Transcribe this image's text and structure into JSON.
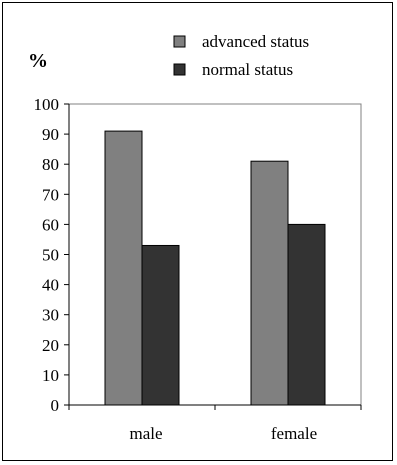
{
  "chart_data": {
    "type": "bar",
    "ylabel": "%",
    "categories": [
      "male",
      "female"
    ],
    "series": [
      {
        "name": "advanced status",
        "values": [
          91,
          81
        ],
        "color": "#808080"
      },
      {
        "name": "normal status",
        "values": [
          53,
          60
        ],
        "color": "#333333"
      }
    ],
    "ylim": [
      0,
      100
    ],
    "yticks": [
      "0",
      "10",
      "20",
      "30",
      "40",
      "50",
      "60",
      "70",
      "80",
      "90",
      "100"
    ],
    "legend_position": "top-right",
    "grid": false
  }
}
